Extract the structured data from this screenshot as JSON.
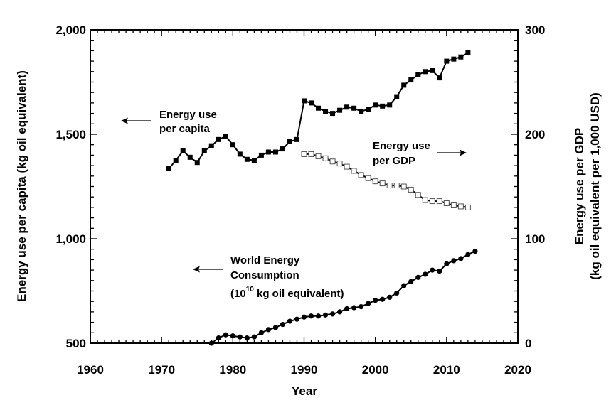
{
  "chart_data": {
    "type": "line",
    "xlabel": "Year",
    "ylabel_left": "Energy use per capita (kg oil equivalent)",
    "ylabel_right_line1": "Energy use per GDP",
    "ylabel_right_line2": "(kg oil equivalent per 1,000 USD)",
    "xlim": [
      1960,
      2020
    ],
    "ylim_left": [
      500,
      2000
    ],
    "ylim_right": [
      0,
      300
    ],
    "x_ticks": [
      "1960",
      "1970",
      "1980",
      "1990",
      "2000",
      "2010",
      "2020"
    ],
    "y_left_ticks": [
      "500",
      "1,000",
      "1,500",
      "2,000"
    ],
    "y_right_ticks": [
      "0",
      "100",
      "200",
      "300"
    ],
    "grid": false,
    "annotations": {
      "per_capita": [
        "Energy use",
        "per capita"
      ],
      "per_gdp": [
        "Energy use",
        "per GDP"
      ],
      "world_line1": "World Energy",
      "world_line2": "Consumption",
      "world_line3_prefix": "(10",
      "world_line3_exp": "10",
      "world_line3_suffix": " kg oil equivalent)"
    },
    "series": [
      {
        "axis": "left",
        "marker": "filled-square",
        "x": [
          1971,
          1972,
          1973,
          1974,
          1975,
          1976,
          1977,
          1978,
          1979,
          1980,
          1981,
          1982,
          1983,
          1984,
          1985,
          1986,
          1987,
          1988,
          1989,
          1990,
          1991,
          1992,
          1993,
          1994,
          1995,
          1996,
          1997,
          1998,
          1999,
          2000,
          2001,
          2002,
          2003,
          2004,
          2005,
          2006,
          2007,
          2008,
          2009,
          2010,
          2011,
          2012,
          2013
        ],
        "y": [
          1335,
          1375,
          1420,
          1390,
          1365,
          1420,
          1445,
          1475,
          1490,
          1450,
          1405,
          1380,
          1375,
          1400,
          1415,
          1415,
          1430,
          1465,
          1475,
          1660,
          1650,
          1625,
          1610,
          1600,
          1615,
          1630,
          1625,
          1610,
          1620,
          1640,
          1635,
          1640,
          1680,
          1735,
          1760,
          1785,
          1800,
          1805,
          1770,
          1850,
          1860,
          1870,
          1890
        ]
      },
      {
        "axis": "right",
        "marker": "open-square",
        "x": [
          1990,
          1991,
          1992,
          1993,
          1994,
          1995,
          1996,
          1997,
          1998,
          1999,
          2000,
          2001,
          2002,
          2003,
          2004,
          2005,
          2006,
          2007,
          2008,
          2009,
          2010,
          2011,
          2012,
          2013
        ],
        "y": [
          181,
          181,
          179,
          177,
          174,
          172,
          169,
          165,
          161,
          158,
          155,
          153,
          151,
          151,
          150,
          147,
          142,
          137,
          136,
          136,
          134,
          132,
          131,
          130
        ]
      },
      {
        "axis": "left",
        "marker": "filled-circle",
        "x": [
          1977,
          1978,
          1979,
          1980,
          1981,
          1982,
          1983,
          1984,
          1985,
          1986,
          1987,
          1988,
          1989,
          1990,
          1991,
          1992,
          1993,
          1994,
          1995,
          1996,
          1997,
          1998,
          1999,
          2000,
          2001,
          2002,
          2003,
          2004,
          2005,
          2006,
          2007,
          2008,
          2009,
          2010,
          2011,
          2012,
          2013,
          2014
        ],
        "y": [
          500,
          525,
          540,
          535,
          530,
          525,
          530,
          550,
          565,
          575,
          590,
          605,
          615,
          625,
          630,
          630,
          635,
          640,
          650,
          665,
          670,
          675,
          690,
          705,
          710,
          720,
          740,
          775,
          795,
          815,
          830,
          850,
          845,
          880,
          895,
          905,
          925,
          940
        ]
      }
    ]
  }
}
